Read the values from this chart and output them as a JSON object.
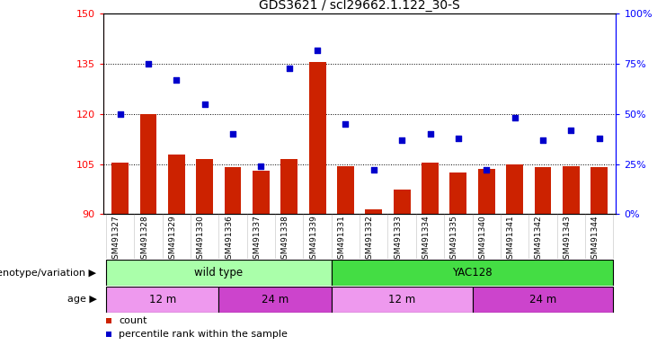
{
  "title": "GDS3621 / scl29662.1.122_30-S",
  "samples": [
    "GSM491327",
    "GSM491328",
    "GSM491329",
    "GSM491330",
    "GSM491336",
    "GSM491337",
    "GSM491338",
    "GSM491339",
    "GSM491331",
    "GSM491332",
    "GSM491333",
    "GSM491334",
    "GSM491335",
    "GSM491340",
    "GSM491341",
    "GSM491342",
    "GSM491343",
    "GSM491344"
  ],
  "counts": [
    105.5,
    120.0,
    108.0,
    106.5,
    104.0,
    103.0,
    106.5,
    135.5,
    104.5,
    91.5,
    97.5,
    105.5,
    102.5,
    103.5,
    105.0,
    104.0,
    104.5,
    104.0
  ],
  "percentiles": [
    50,
    75,
    67,
    55,
    40,
    24,
    73,
    82,
    45,
    22,
    37,
    40,
    38,
    22,
    48,
    37,
    42,
    38
  ],
  "ylim_left": [
    90,
    150
  ],
  "ylim_right": [
    0,
    100
  ],
  "yticks_left": [
    90,
    105,
    120,
    135,
    150
  ],
  "yticks_right": [
    0,
    25,
    50,
    75,
    100
  ],
  "bar_color": "#cc2200",
  "dot_color": "#0000cc",
  "genotype_groups": [
    {
      "label": "wild type",
      "start": 0,
      "end": 8,
      "color": "#aaffaa"
    },
    {
      "label": "YAC128",
      "start": 8,
      "end": 18,
      "color": "#44dd44"
    }
  ],
  "age_groups": [
    {
      "label": "12 m",
      "start": 0,
      "end": 4,
      "color": "#ee99ee"
    },
    {
      "label": "24 m",
      "start": 4,
      "end": 8,
      "color": "#cc44cc"
    },
    {
      "label": "12 m",
      "start": 8,
      "end": 13,
      "color": "#ee99ee"
    },
    {
      "label": "24 m",
      "start": 13,
      "end": 18,
      "color": "#cc44cc"
    }
  ],
  "xlabel_genotype": "genotype/variation",
  "xlabel_age": "age",
  "legend_count_label": "count",
  "legend_pct_label": "percentile rank within the sample",
  "tick_label_fontsize": 6.5,
  "title_fontsize": 10,
  "row_label_fontsize": 8,
  "group_label_fontsize": 8.5
}
